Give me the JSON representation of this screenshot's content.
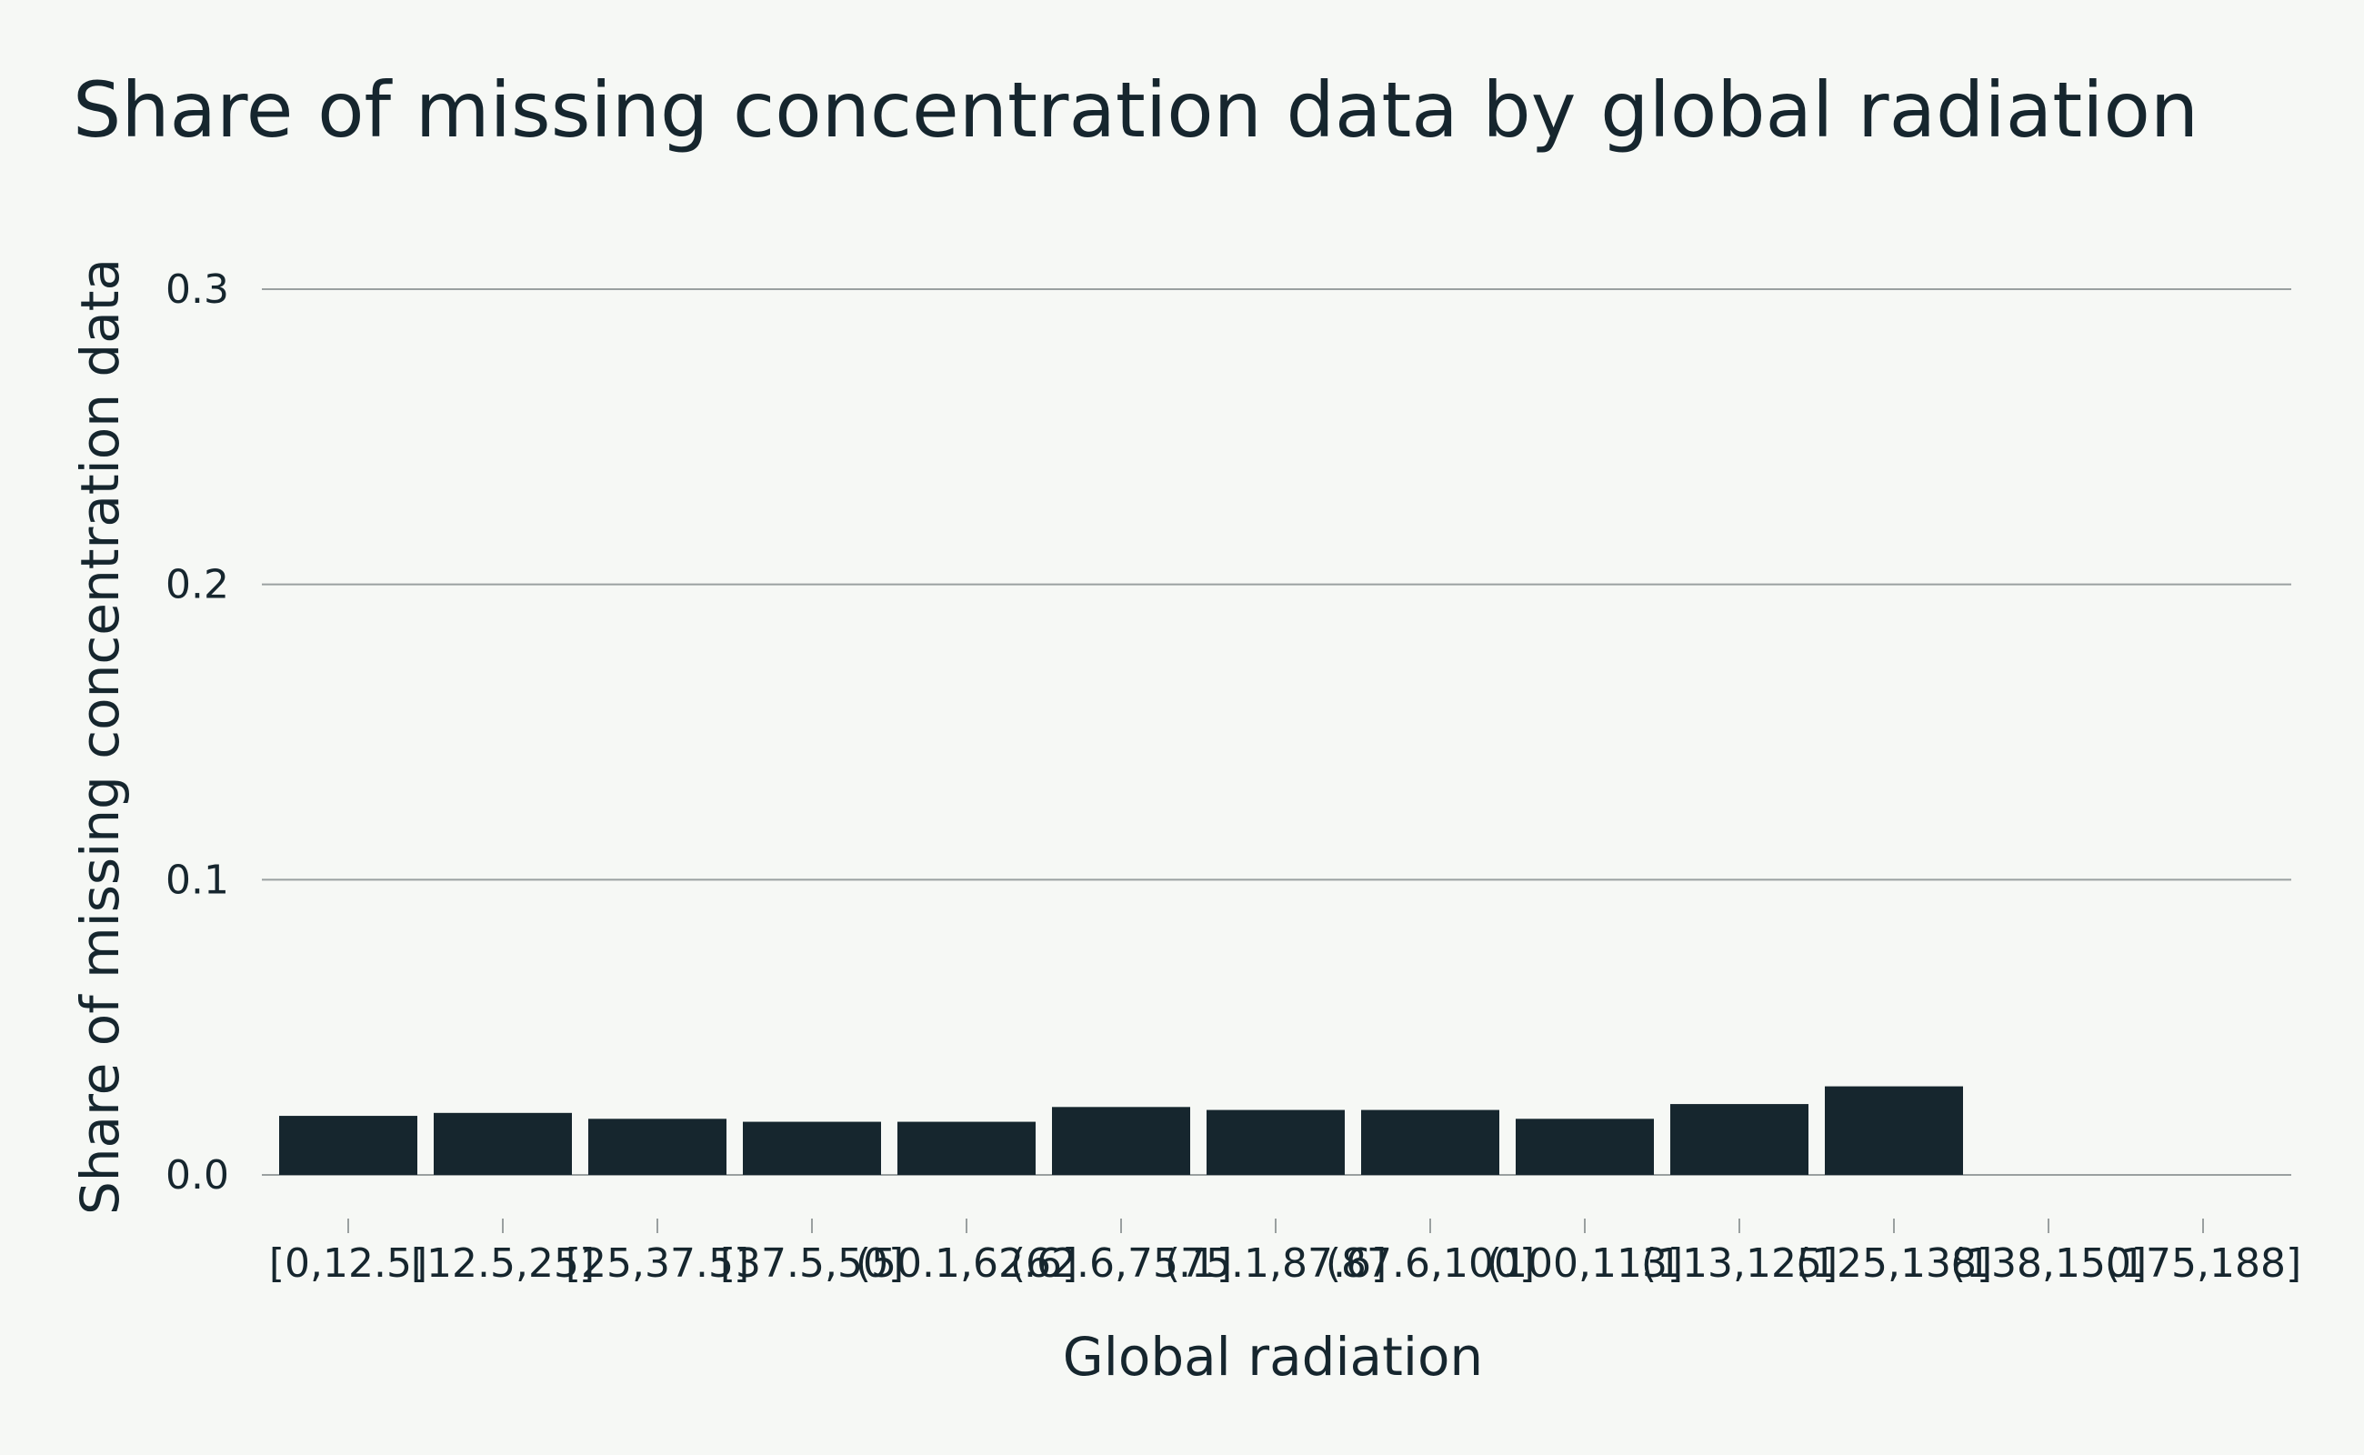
{
  "chart_data": {
    "type": "bar",
    "title": "Share of missing concentration data by global radiation",
    "xlabel": "Global radiation",
    "ylabel": "Share of missing concentration data",
    "categories": [
      "[0,12.5]",
      "[12.5,25]",
      "[25,37.5]",
      "[37.5,50]",
      "(50.1,62.6]",
      "(62.6,75.1]",
      "(75.1,87.6]",
      "(87.6,100]",
      "(100,113]",
      "(113,125]",
      "(125,138]",
      "(138,150]",
      "(175,188]"
    ],
    "values": [
      0.02,
      0.021,
      0.019,
      0.018,
      0.018,
      0.023,
      0.022,
      0.022,
      0.019,
      0.024,
      0.03,
      0,
      0
    ],
    "ylim": [
      0,
      0.3
    ],
    "yticks": [
      0.0,
      0.1,
      0.2,
      0.3
    ],
    "ytick_labels": [
      "0.0",
      "0.1",
      "0.2",
      "0.3"
    ],
    "grid": "horizontal",
    "colors": {
      "bar": "#16262e",
      "background": "#f6f8f5",
      "grid": "#9aa0a0",
      "text": "#16262e"
    }
  }
}
